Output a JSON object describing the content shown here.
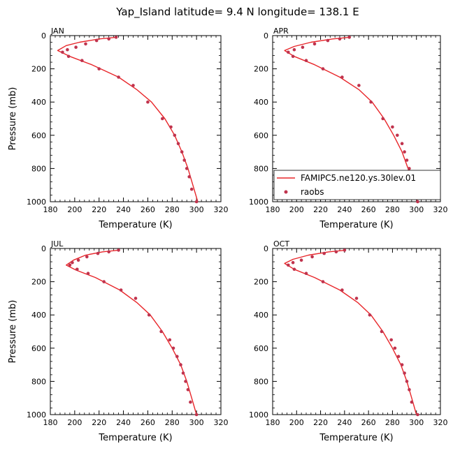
{
  "figure": {
    "title": "Yap_Island  latitude= 9.4 N longitude= 138.1 E"
  },
  "chart_data": [
    {
      "type": "line",
      "panel_label": "JAN",
      "xlabel": "Temperature (K)",
      "ylabel": "Pressure (mb)",
      "xlim": [
        180,
        320
      ],
      "ylim": [
        1000,
        0
      ],
      "y_inverted": true,
      "x_ticks": [
        "180",
        "200",
        "220",
        "240",
        "260",
        "280",
        "300",
        "320"
      ],
      "y_ticks": [
        "0",
        "200",
        "400",
        "600",
        "800",
        "1000"
      ],
      "grid": false,
      "legend": null,
      "series": [
        {
          "name": "FAMIPC5.ne120.ys.30lev.01",
          "style": "line",
          "color": "#e8262a",
          "x": [
            234,
            220,
            204,
            193,
            186,
            196,
            214,
            236,
            251,
            263,
            274,
            282,
            288,
            293,
            297,
            301
          ],
          "y": [
            10,
            20,
            40,
            60,
            90,
            125,
            175,
            250,
            325,
            400,
            500,
            600,
            700,
            800,
            900,
            1000
          ]
        },
        {
          "name": "raobs",
          "style": "marker",
          "color": "#c0334d",
          "x": [
            234,
            228,
            218,
            209,
            201,
            194,
            190,
            195,
            206,
            220,
            236,
            248,
            260,
            272,
            279,
            282,
            285,
            288,
            290,
            292,
            294,
            296,
            300
          ],
          "y": [
            10,
            20,
            30,
            50,
            70,
            85,
            100,
            125,
            150,
            200,
            250,
            300,
            400,
            500,
            550,
            600,
            650,
            700,
            750,
            800,
            850,
            925,
            1000
          ]
        }
      ]
    },
    {
      "type": "line",
      "panel_label": "APR",
      "xlabel": "Temperature (K)",
      "ylabel": "",
      "xlim": [
        180,
        320
      ],
      "ylim": [
        1000,
        0
      ],
      "y_inverted": true,
      "x_ticks": [
        "180",
        "200",
        "220",
        "240",
        "260",
        "280",
        "300",
        "320"
      ],
      "y_ticks": [
        "0",
        "200",
        "400",
        "600",
        "800",
        "1000"
      ],
      "grid": false,
      "legend": "bottom-left",
      "series": [
        {
          "name": "FAMIPC5.ne120.ys.30lev.01",
          "style": "line",
          "color": "#e8262a",
          "x": [
            244,
            230,
            212,
            198,
            190,
            198,
            215,
            236,
            252,
            263,
            273,
            281,
            288,
            293,
            297,
            301
          ],
          "y": [
            10,
            20,
            40,
            65,
            90,
            125,
            175,
            250,
            325,
            400,
            500,
            600,
            700,
            800,
            900,
            1000
          ]
        },
        {
          "name": "raobs",
          "style": "marker",
          "color": "#c0334d",
          "x": [
            244,
            236,
            226,
            215,
            205,
            198,
            193,
            197,
            208,
            222,
            238,
            252,
            262,
            272,
            280,
            284,
            288,
            290,
            292,
            294,
            296,
            298,
            301
          ],
          "y": [
            10,
            20,
            30,
            50,
            70,
            85,
            100,
            125,
            150,
            200,
            250,
            300,
            400,
            500,
            550,
            600,
            650,
            700,
            750,
            800,
            850,
            925,
            1000
          ]
        }
      ]
    },
    {
      "type": "line",
      "panel_label": "JUL",
      "xlabel": "Temperature (K)",
      "ylabel": "Pressure (mb)",
      "xlim": [
        180,
        320
      ],
      "ylim": [
        1000,
        0
      ],
      "y_inverted": true,
      "x_ticks": [
        "180",
        "200",
        "220",
        "240",
        "260",
        "280",
        "300",
        "320"
      ],
      "y_ticks": [
        "0",
        "200",
        "400",
        "600",
        "800",
        "1000"
      ],
      "grid": false,
      "legend": null,
      "series": [
        {
          "name": "FAMIPC5.ne120.ys.30lev.01",
          "style": "line",
          "color": "#e8262a",
          "x": [
            236,
            223,
            209,
            199,
            193,
            201,
            217,
            237,
            251,
            262,
            272,
            280,
            287,
            292,
            296,
            300
          ],
          "y": [
            10,
            20,
            40,
            70,
            100,
            130,
            175,
            250,
            325,
            400,
            500,
            600,
            700,
            800,
            900,
            1000
          ]
        },
        {
          "name": "raobs",
          "style": "marker",
          "color": "#c0334d",
          "x": [
            236,
            228,
            219,
            210,
            203,
            198,
            196,
            202,
            211,
            224,
            238,
            250,
            261,
            271,
            278,
            281,
            284,
            287,
            289,
            291,
            293,
            295,
            300
          ],
          "y": [
            10,
            20,
            30,
            50,
            70,
            85,
            100,
            125,
            150,
            200,
            250,
            300,
            400,
            500,
            550,
            600,
            650,
            700,
            750,
            800,
            850,
            925,
            1000
          ]
        }
      ]
    },
    {
      "type": "line",
      "panel_label": "OCT",
      "xlabel": "Temperature (K)",
      "ylabel": "",
      "xlim": [
        180,
        320
      ],
      "ylim": [
        1000,
        0
      ],
      "y_inverted": true,
      "x_ticks": [
        "180",
        "200",
        "220",
        "240",
        "260",
        "280",
        "300",
        "320"
      ],
      "y_ticks": [
        "0",
        "200",
        "400",
        "600",
        "800",
        "1000"
      ],
      "grid": false,
      "legend": null,
      "series": [
        {
          "name": "FAMIPC5.ne120.ys.30lev.01",
          "style": "line",
          "color": "#e8262a",
          "x": [
            241,
            227,
            210,
            197,
            190,
            198,
            215,
            236,
            251,
            262,
            272,
            280,
            287,
            292,
            296,
            300
          ],
          "y": [
            10,
            20,
            40,
            65,
            90,
            125,
            175,
            250,
            325,
            400,
            500,
            600,
            700,
            800,
            900,
            1000
          ]
        },
        {
          "name": "raobs",
          "style": "marker",
          "color": "#c0334d",
          "x": [
            240,
            233,
            223,
            213,
            204,
            197,
            193,
            198,
            208,
            222,
            238,
            250,
            261,
            271,
            279,
            282,
            285,
            288,
            290,
            292,
            294,
            296,
            301
          ],
          "y": [
            10,
            20,
            30,
            50,
            70,
            85,
            100,
            125,
            150,
            200,
            250,
            300,
            400,
            500,
            550,
            600,
            650,
            700,
            750,
            800,
            850,
            925,
            1000
          ]
        }
      ]
    }
  ]
}
